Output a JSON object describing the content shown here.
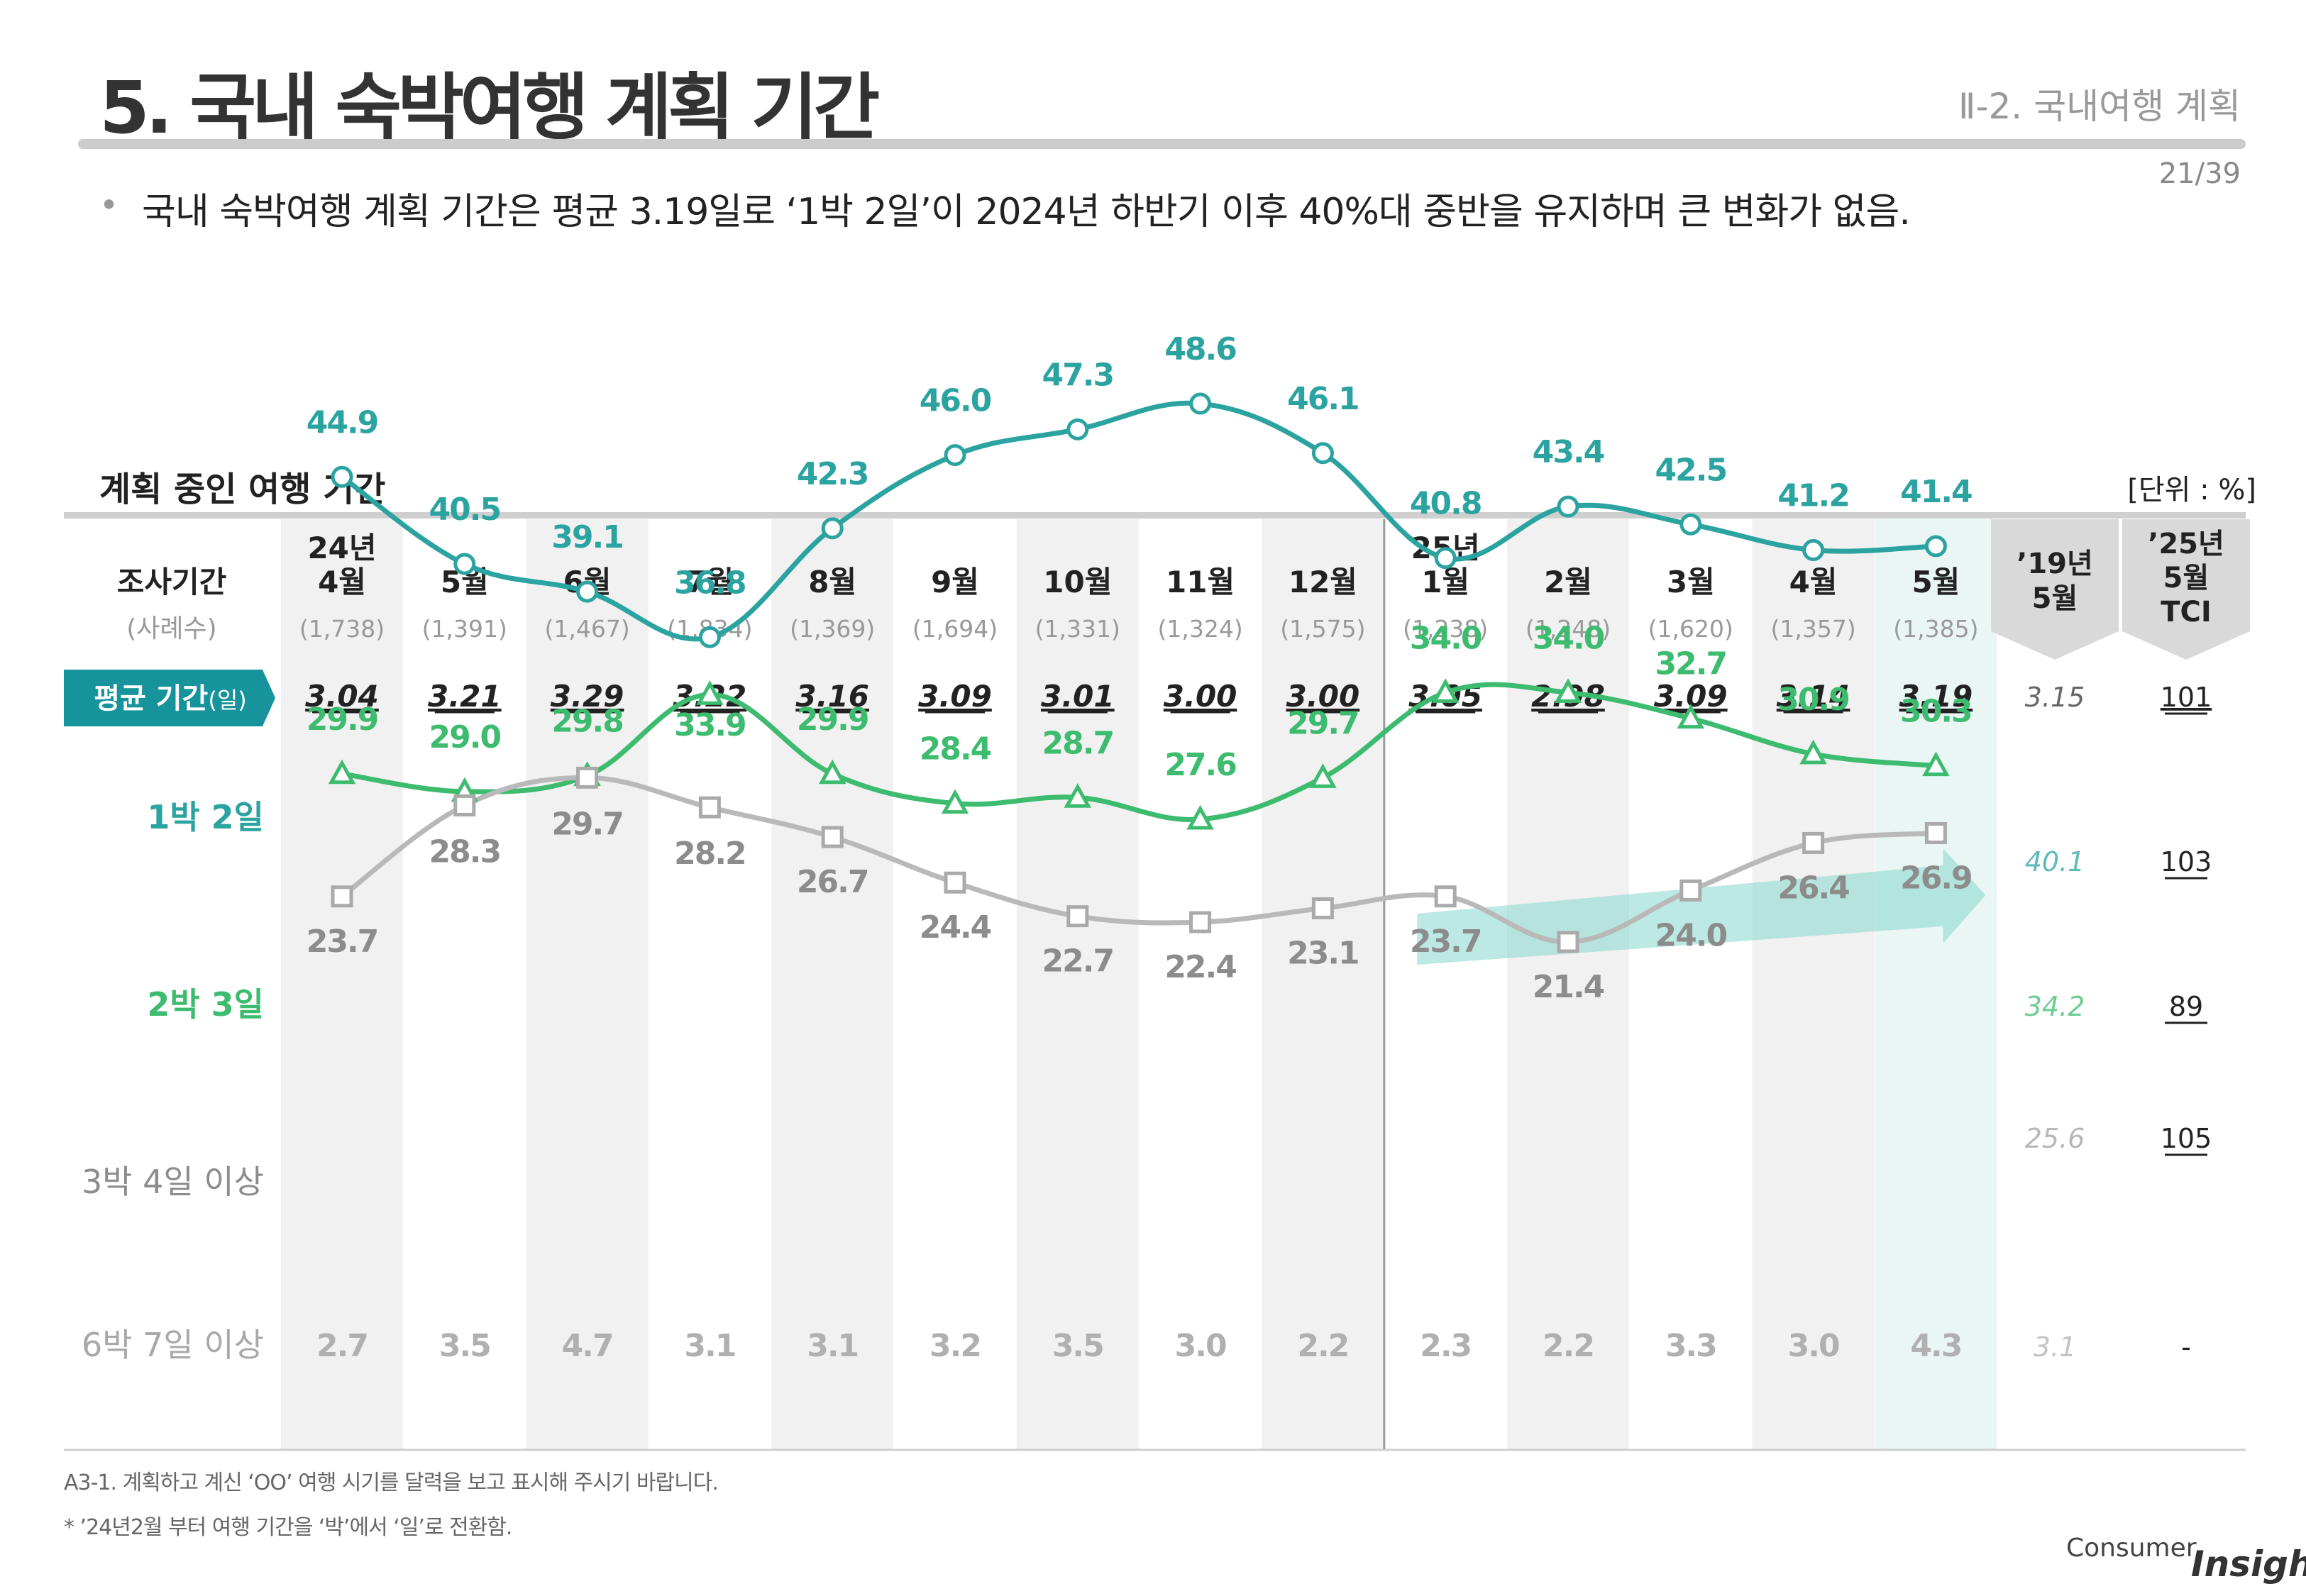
{
  "header": {
    "title": "5. 국내 숙박여행 계획 기간",
    "section": "Ⅱ-2. 국내여행 계획",
    "page": "21/39",
    "bullet": "국내 숙박여행 계획 기간은 평균 3.19일로 ‘1박 2일’이 2024년 하반기 이후 40%대 중반을 유지하며 큰 변화가 없음."
  },
  "chart_title": "계획 중인 여행 기간",
  "unit": "[단위 : %]",
  "row_labels": {
    "period": "조사기간",
    "cases": "(사례수)",
    "avg": "평균 기간",
    "avg_unit": "(일)"
  },
  "footnotes": [
    "A3-1. 계획하고 계신 ‘OO’ 여행 시기를 달력을 보고 표시해 주시기 바랍니다.",
    "* ’24년2월 부터 여행 기간을 ‘박’에서 ‘일’로 전환함."
  ],
  "logo": {
    "text": "Consumer",
    "bold": "Insight"
  },
  "colors": {
    "one_night": "#2ba3a0",
    "two_nights": "#3dbb6e",
    "three_plus": "#b9b9b9",
    "six_plus": "#b0b0b0",
    "avg_banner": "#16939b",
    "stripe": "#f1f1f1",
    "highlight": "#e9f6f4",
    "gray_header": "#d9d9d9"
  },
  "chart_data": {
    "type": "line",
    "title": "계획 중인 여행 기간",
    "unit": "%",
    "categories": [
      {
        "l1": "24년",
        "l2": "4월",
        "n": "(1,738)"
      },
      {
        "l1": "",
        "l2": "5월",
        "n": "(1,391)"
      },
      {
        "l1": "",
        "l2": "6월",
        "n": "(1,467)"
      },
      {
        "l1": "",
        "l2": "7월",
        "n": "(1,834)"
      },
      {
        "l1": "",
        "l2": "8월",
        "n": "(1,369)"
      },
      {
        "l1": "",
        "l2": "9월",
        "n": "(1,694)"
      },
      {
        "l1": "",
        "l2": "10월",
        "n": "(1,331)"
      },
      {
        "l1": "",
        "l2": "11월",
        "n": "(1,324)"
      },
      {
        "l1": "",
        "l2": "12월",
        "n": "(1,575)"
      },
      {
        "l1": "25년",
        "l2": "1월",
        "n": "(1,238)"
      },
      {
        "l1": "",
        "l2": "2월",
        "n": "(1,248)"
      },
      {
        "l1": "",
        "l2": "3월",
        "n": "(1,620)"
      },
      {
        "l1": "",
        "l2": "4월",
        "n": "(1,357)"
      },
      {
        "l1": "",
        "l2": "5월",
        "n": "(1,385)"
      }
    ],
    "avg_days": [
      "3.04",
      "3.21",
      "3.29",
      "3.22",
      "3.16",
      "3.09",
      "3.01",
      "3.00",
      "3.00",
      "3.05",
      "2.98",
      "3.09",
      "3.14",
      "3.19"
    ],
    "series": [
      {
        "name": "1박 2일",
        "marker": "circle",
        "values": [
          44.9,
          40.5,
          39.1,
          36.8,
          42.3,
          46.0,
          47.3,
          48.6,
          46.1,
          40.8,
          43.4,
          42.5,
          41.2,
          41.4
        ]
      },
      {
        "name": "2박 3일",
        "marker": "triangle",
        "values": [
          29.9,
          29.0,
          29.8,
          33.9,
          29.9,
          28.4,
          28.7,
          27.6,
          29.7,
          34.0,
          34.0,
          32.7,
          30.9,
          30.3
        ]
      },
      {
        "name": "3박 4일 이상",
        "marker": "square",
        "values": [
          23.7,
          28.3,
          29.7,
          28.2,
          26.7,
          24.4,
          22.7,
          22.4,
          23.1,
          23.7,
          21.4,
          24.0,
          26.4,
          26.9
        ]
      },
      {
        "name": "6박 7일 이상",
        "marker": "none",
        "values": [
          2.7,
          3.5,
          4.7,
          3.1,
          3.1,
          3.2,
          3.5,
          3.0,
          2.2,
          2.3,
          2.2,
          3.3,
          3.0,
          4.3
        ]
      }
    ],
    "comparison": {
      "y19_header": [
        "’19년",
        "5월"
      ],
      "tci_header": [
        "’25년",
        "5월",
        "TCI"
      ],
      "y19": {
        "avg": "3.15",
        "values": [
          "40.1",
          "34.2",
          "25.6",
          "3.1"
        ]
      },
      "tci": {
        "avg": "101",
        "values": [
          "103",
          "89",
          "105",
          "-"
        ]
      }
    }
  }
}
